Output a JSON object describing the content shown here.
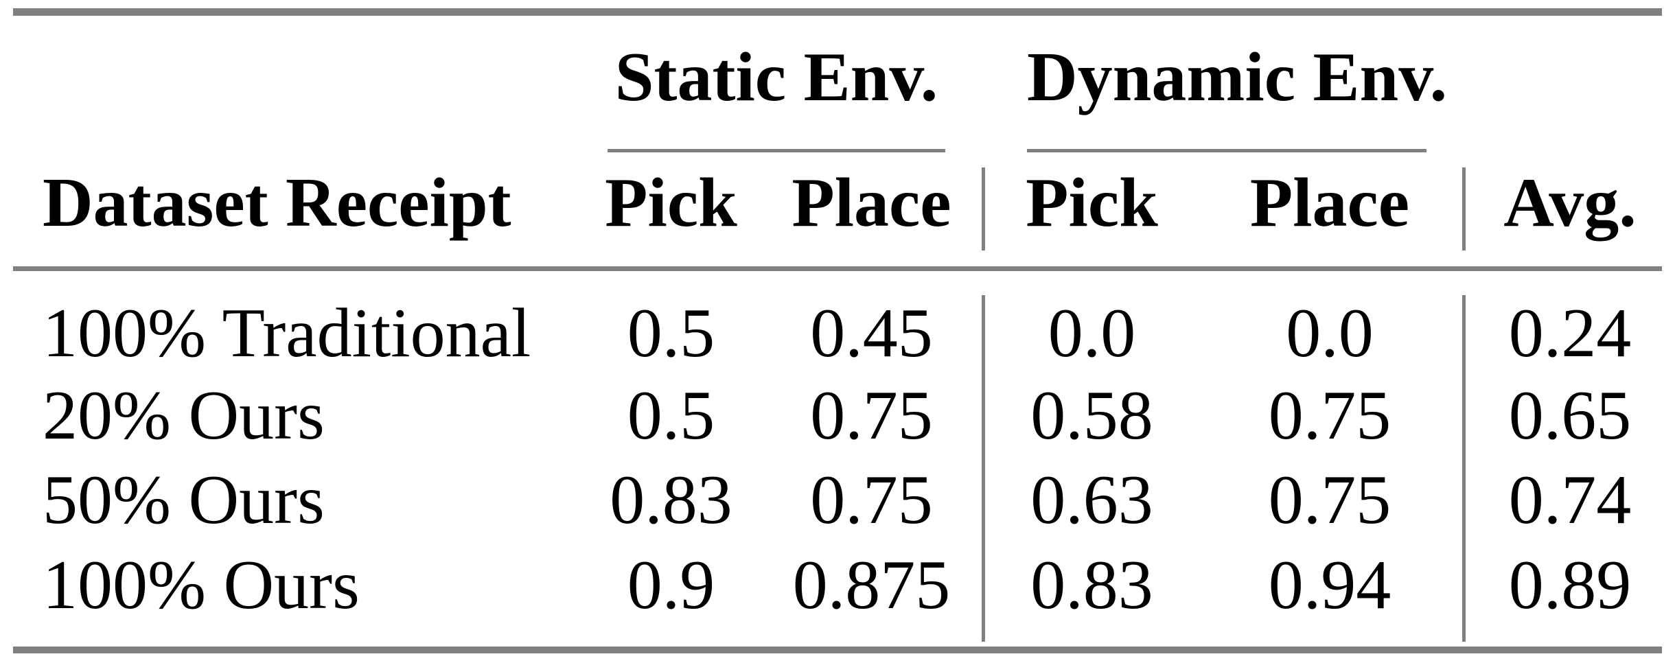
{
  "colors": {
    "rule": "#808080",
    "text": "#000000",
    "background": "#ffffff"
  },
  "table": {
    "column_groups": [
      {
        "label": "Static Env.",
        "sub_columns": [
          "Pick",
          "Place"
        ]
      },
      {
        "label": "Dynamic Env.",
        "sub_columns": [
          "Pick",
          "Place"
        ]
      }
    ],
    "header": {
      "row_label": "Dataset Receipt",
      "static_pick": "Pick",
      "static_place": "Place",
      "dynamic_pick": "Pick",
      "dynamic_place": "Place",
      "avg": "Avg."
    },
    "rows": [
      {
        "label": "100% Traditional",
        "values": [
          "0.5",
          "0.45",
          "0.0",
          "0.0",
          "0.24"
        ]
      },
      {
        "label": "20% Ours",
        "values": [
          "0.5",
          "0.75",
          "0.58",
          "0.75",
          "0.65"
        ]
      },
      {
        "label": "50% Ours",
        "values": [
          "0.83",
          "0.75",
          "0.63",
          "0.75",
          "0.74"
        ]
      },
      {
        "label": "100% Ours",
        "values": [
          "0.9",
          "0.875",
          "0.83",
          "0.94",
          "0.89"
        ]
      }
    ]
  },
  "chart_data": {
    "type": "table",
    "columns": [
      "Dataset Receipt",
      "Static Env. Pick",
      "Static Env. Place",
      "Dynamic Env. Pick",
      "Dynamic Env. Place",
      "Avg."
    ],
    "rows": [
      [
        "100% Traditional",
        0.5,
        0.45,
        0.0,
        0.0,
        0.24
      ],
      [
        "20% Ours",
        0.5,
        0.75,
        0.58,
        0.75,
        0.65
      ],
      [
        "50% Ours",
        0.83,
        0.75,
        0.63,
        0.75,
        0.74
      ],
      [
        "100% Ours",
        0.9,
        0.875,
        0.83,
        0.94,
        0.89
      ]
    ]
  }
}
